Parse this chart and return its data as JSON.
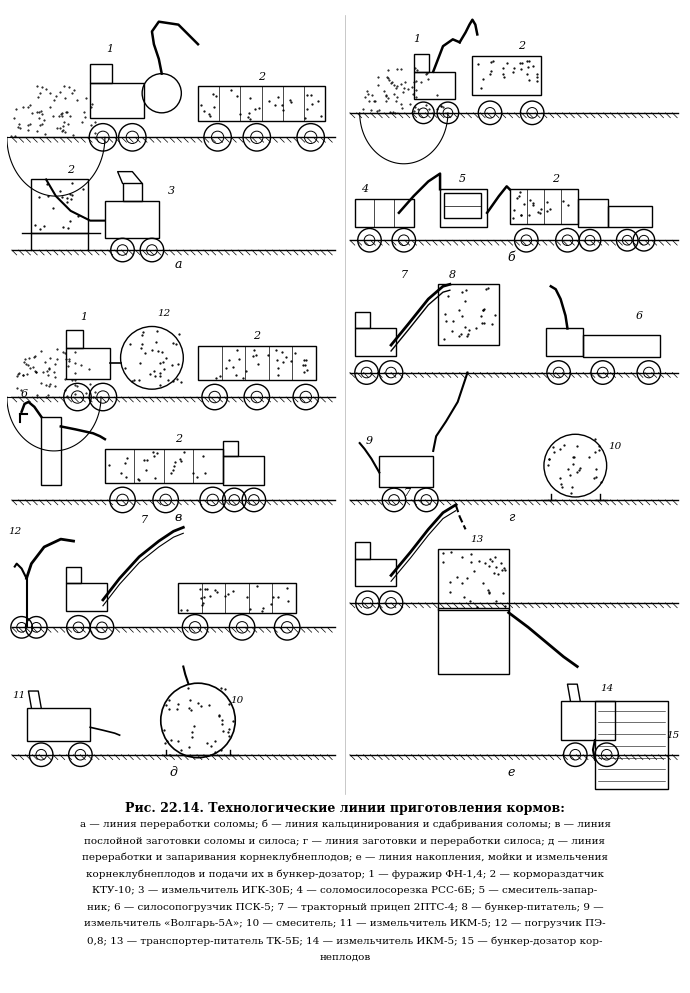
{
  "title": "Рис. 22.14. Технологические линии приготовления кормов:",
  "caption_lines": [
    "а — линия переработки соломы; б — линия кальцинирования и сдабривания соломы; в — линия",
    "послойной заготовки соломы и силоса; г — линия заготовки и переработки силоса; д — линия",
    "переработки и запаривания корнеклубнеплодов; е — линия накопления, мойки и измельчения",
    "корнеклубнеплодов и подачи их в бункер-дозатор; 1 — фуражир ФН-1,4; 2 — кормораздатчик",
    "КТУ-10; 3 — измельчитель ИГК-30Б; 4 — соломосилосорезка РСС-6Б; 5 — смеситель-запар-",
    "ник; 6 — силосопогрузчик ПСК-5; 7 — тракторный прицеп 2ПТС-4; 8 — бункер-питатель; 9 —",
    "измельчитель «Волгарь-5А»; 10 — смеситель; 11 — измельчитель ИКМ-5; 12 — погрузчик ПЭ-",
    "0,8; 13 — транспортер-питатель ТК-5Б; 14 — измельчитель ИКМ-5; 15 — бункер-дозатор кор-",
    "неплодов"
  ],
  "bg_color": "#ffffff",
  "figsize": [
    6.9,
    9.93
  ],
  "dpi": 100
}
